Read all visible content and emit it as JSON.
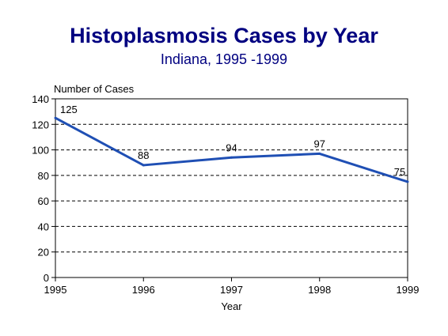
{
  "chart_data": {
    "type": "line",
    "title": "Histoplasmosis Cases by Year",
    "subtitle": "Indiana, 1995 -1999",
    "xlabel": "Year",
    "ylabel": "Number of Cases",
    "x": [
      "1995",
      "1996",
      "1997",
      "1998",
      "1999"
    ],
    "series": [
      {
        "values": [
          125,
          88,
          94,
          97,
          75
        ],
        "color": "#1F4FB4"
      }
    ],
    "ylim": [
      0,
      140
    ],
    "yticks": [
      0,
      20,
      40,
      60,
      80,
      100,
      120,
      140
    ],
    "grid": "horizontal dashed",
    "legend": "none"
  }
}
